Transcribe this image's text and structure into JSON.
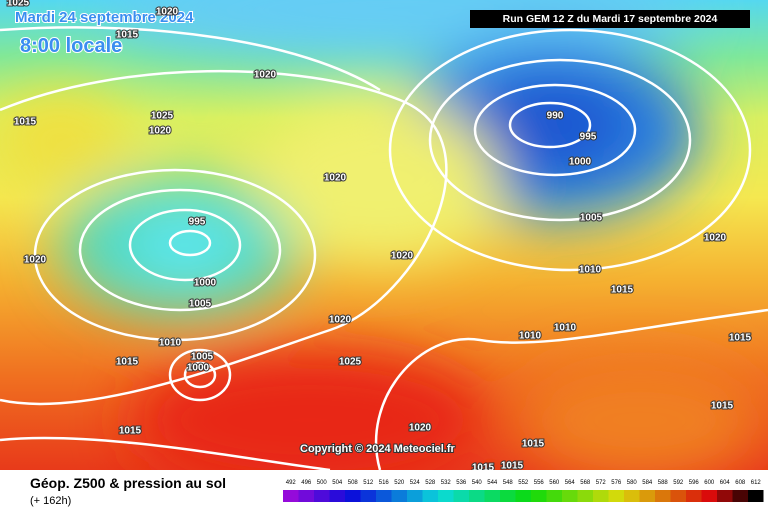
{
  "header": {
    "date": "Mardi 24 septembre 2024",
    "time": "8:00 locale",
    "run": "Run GEM 12 Z du Mardi 17 septembre 2024"
  },
  "map": {
    "copyright": "Copyright © 2024 Meteociel.fr",
    "isobar_labels": [
      "1025",
      "1015",
      "1020",
      "1020",
      "1015",
      "1025",
      "1020",
      "1020",
      "990",
      "995",
      "1000",
      "1005",
      "995",
      "1000",
      "1005",
      "1020",
      "1020",
      "1020",
      "1010",
      "1015",
      "1020",
      "1010",
      "1005",
      "1000",
      "1015",
      "1025",
      "1010",
      "1010",
      "1015",
      "1015",
      "1020",
      "1015",
      "1015",
      "1015",
      "1015"
    ]
  },
  "footer": {
    "title": "Géop. Z500 & pression au sol",
    "subtitle": "(+ 162h)",
    "scale": [
      492,
      496,
      500,
      504,
      508,
      512,
      516,
      520,
      524,
      528,
      532,
      536,
      540,
      544,
      548,
      552,
      556,
      560,
      564,
      568,
      572,
      576,
      580,
      584,
      588,
      592,
      596,
      600,
      604,
      608,
      612
    ]
  }
}
